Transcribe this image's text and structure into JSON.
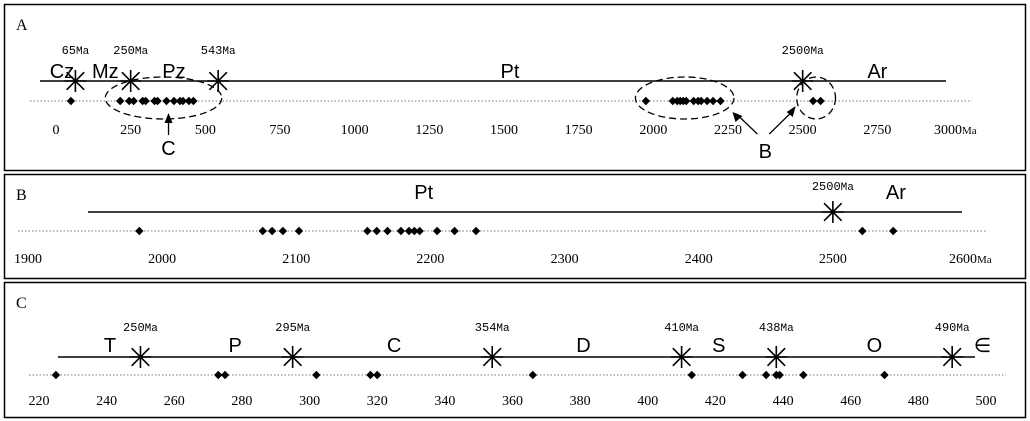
{
  "panels": [
    {
      "id": "A",
      "label": "A",
      "axis": {
        "min": 0,
        "max": 3000,
        "ticks": [
          0,
          250,
          500,
          750,
          1000,
          1250,
          1500,
          1750,
          2000,
          2250,
          2500,
          2750,
          3000
        ],
        "unit": "Ma"
      },
      "boundaries": [
        {
          "value": 65,
          "label": "65Ma"
        },
        {
          "value": 250,
          "label": "250Ma"
        },
        {
          "value": 543,
          "label": "543Ma"
        },
        {
          "value": 2500,
          "label": "2500Ma"
        }
      ],
      "eras": [
        {
          "label": "Cz",
          "at": 20
        },
        {
          "label": "Mz",
          "at": 165
        },
        {
          "label": "Pz",
          "at": 395
        },
        {
          "label": "Pt",
          "at": 1520
        },
        {
          "label": "Ar",
          "at": 2750
        }
      ],
      "points": [
        50,
        215,
        245,
        260,
        290,
        300,
        330,
        340,
        370,
        395,
        415,
        425,
        445,
        460,
        1975,
        2065,
        2080,
        2090,
        2100,
        2110,
        2135,
        2150,
        2160,
        2180,
        2200,
        2225,
        2535,
        2560
      ],
      "groups": [
        {
          "label": "C",
          "from": 165,
          "to": 555
        },
        {
          "label": "B",
          "from": 1940,
          "to": 2270
        },
        {
          "label": "B",
          "from": 2480,
          "to": 2610
        }
      ]
    },
    {
      "id": "B",
      "label": "B",
      "axis": {
        "min": 1900,
        "max": 2600,
        "ticks": [
          1900,
          2000,
          2100,
          2200,
          2300,
          2400,
          2500,
          2600
        ],
        "unit": "Ma"
      },
      "boundaries": [
        {
          "value": 2500,
          "label": "2500Ma"
        }
      ],
      "eras": [
        {
          "label": "Pt",
          "at": 2195
        },
        {
          "label": "Ar",
          "at": 2547
        }
      ],
      "points": [
        1983,
        2075,
        2082,
        2090,
        2102,
        2153,
        2160,
        2168,
        2178,
        2184,
        2188,
        2192,
        2205,
        2218,
        2234,
        2522,
        2545
      ]
    },
    {
      "id": "C",
      "label": "C",
      "axis": {
        "min": 220,
        "max": 500,
        "ticks": [
          220,
          240,
          260,
          280,
          300,
          320,
          340,
          360,
          380,
          400,
          420,
          440,
          460,
          480,
          500
        ],
        "unit": ""
      },
      "boundaries": [
        {
          "value": 250,
          "label": "250Ma"
        },
        {
          "value": 295,
          "label": "295Ma"
        },
        {
          "value": 354,
          "label": "354Ma"
        },
        {
          "value": 410,
          "label": "410Ma"
        },
        {
          "value": 438,
          "label": "438Ma"
        },
        {
          "value": 490,
          "label": "490Ma"
        }
      ],
      "eras": [
        {
          "label": "T",
          "at": 241
        },
        {
          "label": "P",
          "at": 278
        },
        {
          "label": "C",
          "at": 325
        },
        {
          "label": "D",
          "at": 381
        },
        {
          "label": "S",
          "at": 421
        },
        {
          "label": "O",
          "at": 467
        },
        {
          "label": "∈",
          "at": 499
        }
      ],
      "points": [
        225,
        273,
        275,
        302,
        318,
        320,
        366,
        413,
        428,
        435,
        438,
        439,
        446,
        470
      ]
    }
  ]
}
